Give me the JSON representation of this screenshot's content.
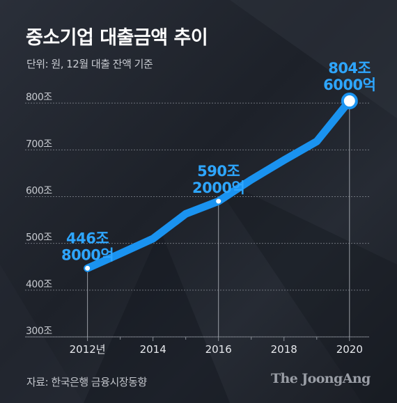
{
  "title": "중소기업 대출금액 추이",
  "subtitle": "단위: 원, 12월 대출 잔액 기준",
  "source": "자료: 한국은행 금융시장동향",
  "logo_text": "The JoongAng",
  "colors": {
    "line": "#1a93f0",
    "label": "#2ea6ff",
    "grid": "#8a8f98",
    "text": "#c7cad0"
  },
  "chart_data": {
    "type": "line",
    "title": "중소기업 대출금액 추이",
    "unit": "원",
    "y_tick_labels": [
      "300조",
      "400조",
      "500조",
      "600조",
      "700조",
      "800조"
    ],
    "y_ticks": [
      300,
      400,
      500,
      600,
      700,
      800
    ],
    "ylim": [
      300,
      830
    ],
    "x_tick_labels": [
      "2012년",
      "2014",
      "2016",
      "2018",
      "2020"
    ],
    "x_ticks": [
      2012,
      2014,
      2016,
      2018,
      2020
    ],
    "xlim": [
      2011.2,
      2020.6
    ],
    "grid": true,
    "series": [
      {
        "x": [
          2012,
          2013,
          2014,
          2015,
          2016,
          2017,
          2018,
          2019,
          2020
        ],
        "y": [
          446.8,
          478,
          510,
          563,
          590.2,
          636,
          678,
          718,
          804.6
        ]
      }
    ],
    "annotations": [
      {
        "x": 2012,
        "y": 446.8,
        "line1": "446조",
        "line2": "8000억"
      },
      {
        "x": 2016,
        "y": 590.2,
        "line1": "590조",
        "line2": "2000억"
      },
      {
        "x": 2020,
        "y": 804.6,
        "line1": "804조",
        "line2": "6000억"
      }
    ]
  }
}
